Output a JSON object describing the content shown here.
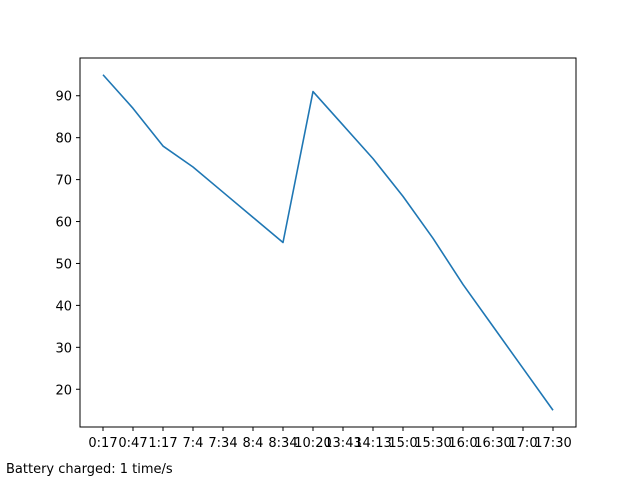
{
  "caption": "Battery charged: 1 time/s",
  "chart_data": {
    "type": "line",
    "title": "",
    "xlabel": "",
    "ylabel": "",
    "categories": [
      "0:17",
      "0:47",
      "1:17",
      "7:4",
      "7:34",
      "8:4",
      "8:34",
      "10:20",
      "13:43",
      "14:13",
      "15:0",
      "15:30",
      "16:0",
      "16:30",
      "17:0",
      "17:30"
    ],
    "values": [
      95,
      87,
      78,
      73,
      67,
      61,
      55,
      91,
      83,
      75,
      66,
      56,
      45,
      35,
      25,
      15
    ],
    "yticks": [
      20,
      30,
      40,
      50,
      60,
      70,
      80,
      90
    ],
    "ylim": [
      11,
      99
    ],
    "grid": false,
    "line_color": "#1f77b4"
  }
}
